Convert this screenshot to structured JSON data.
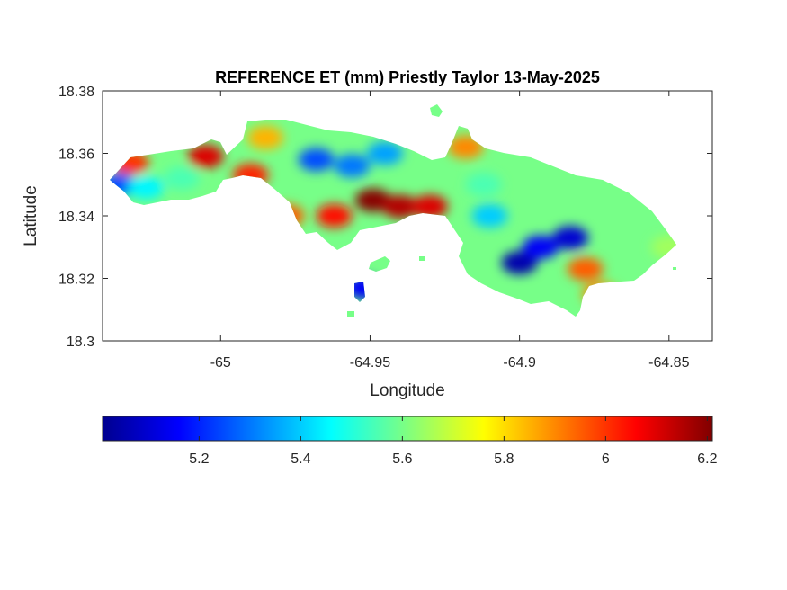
{
  "chart_data": {
    "type": "heatmap",
    "title": "REFERENCE ET (mm) Priestly Taylor 13-May-2025",
    "xlabel": "Longitude",
    "ylabel": "Latitude",
    "xlim": [
      -65.0395,
      -64.8355
    ],
    "ylim": [
      18.3,
      18.38
    ],
    "xticks": [
      -65,
      -64.95,
      -64.9,
      -64.85
    ],
    "xtick_labels": [
      "-65",
      "-64.95",
      "-64.9",
      "-64.85"
    ],
    "yticks": [
      18.3,
      18.32,
      18.34,
      18.36,
      18.38
    ],
    "ytick_labels": [
      "18.3",
      "18.32",
      "18.34",
      "18.36",
      "18.38"
    ],
    "grid": false,
    "colormap": "jet",
    "colorbar": {
      "orientation": "horizontal",
      "location": "below",
      "range": [
        5.01,
        6.21
      ],
      "ticks": [
        5.2,
        5.4,
        5.6,
        5.8,
        6.0,
        6.2
      ],
      "tick_labels": [
        "5.2",
        "5.4",
        "5.6",
        "5.8",
        "6",
        "6.2"
      ]
    },
    "hotspots": [
      {
        "lon": -64.949,
        "lat": 18.345,
        "value": 6.2
      },
      {
        "lon": -64.94,
        "lat": 18.343,
        "value": 6.15
      },
      {
        "lon": -64.93,
        "lat": 18.343,
        "value": 6.1
      },
      {
        "lon": -64.962,
        "lat": 18.34,
        "value": 6.05
      },
      {
        "lon": -64.978,
        "lat": 18.34,
        "value": 5.95
      },
      {
        "lon": -64.99,
        "lat": 18.353,
        "value": 6.02
      },
      {
        "lon": -65.005,
        "lat": 18.359,
        "value": 6.1
      },
      {
        "lon": -64.985,
        "lat": 18.365,
        "value": 5.85
      },
      {
        "lon": -64.918,
        "lat": 18.362,
        "value": 5.9
      },
      {
        "lon": -65.03,
        "lat": 18.357,
        "value": 6.0
      },
      {
        "lon": -64.956,
        "lat": 18.356,
        "value": 5.3
      },
      {
        "lon": -64.968,
        "lat": 18.358,
        "value": 5.25
      },
      {
        "lon": -64.945,
        "lat": 18.36,
        "value": 5.35
      },
      {
        "lon": -65.034,
        "lat": 18.35,
        "value": 5.25
      },
      {
        "lon": -65.025,
        "lat": 18.349,
        "value": 5.45
      },
      {
        "lon": -65.013,
        "lat": 18.352,
        "value": 5.55
      },
      {
        "lon": -64.9,
        "lat": 18.325,
        "value": 5.05
      },
      {
        "lon": -64.893,
        "lat": 18.33,
        "value": 5.15
      },
      {
        "lon": -64.883,
        "lat": 18.333,
        "value": 5.1
      },
      {
        "lon": -64.91,
        "lat": 18.34,
        "value": 5.4
      },
      {
        "lon": -64.878,
        "lat": 18.323,
        "value": 5.95
      },
      {
        "lon": -64.873,
        "lat": 18.315,
        "value": 5.9
      },
      {
        "lon": -64.85,
        "lat": 18.33,
        "value": 5.65
      },
      {
        "lon": -64.912,
        "lat": 18.35,
        "value": 5.55
      },
      {
        "lon": -64.952,
        "lat": 18.317,
        "value": 5.15
      }
    ]
  }
}
